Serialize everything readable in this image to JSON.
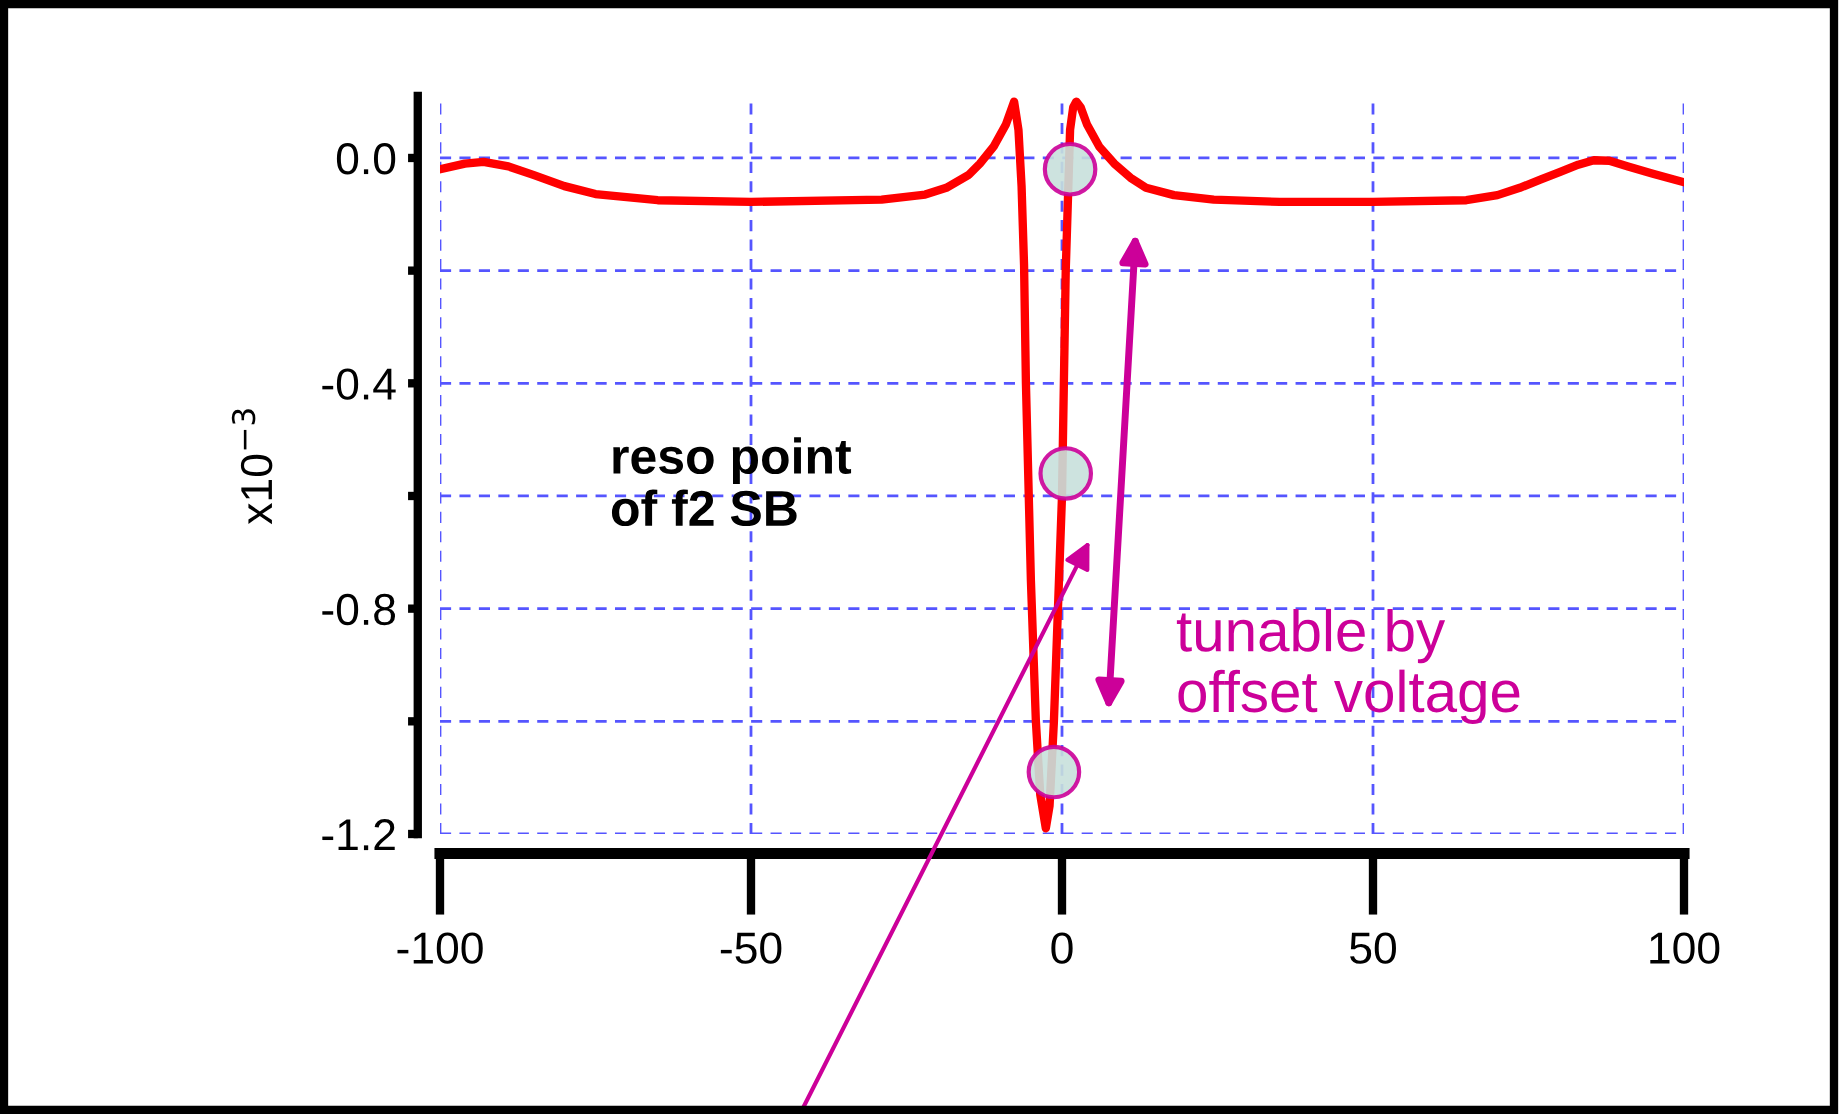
{
  "chart_data": {
    "type": "line",
    "ylabel": "x10$^{−3}$",
    "xlim": [
      -100,
      100
    ],
    "xticks": [
      -100,
      -50,
      0,
      50,
      100
    ],
    "ylim": [
      -1.2,
      0.11
    ],
    "yticks": [
      {
        "value": 0,
        "label": "0.0"
      },
      {
        "value": -0.2,
        "label": null
      },
      -0.4,
      {
        "value": -0.6,
        "label": null
      },
      -0.8,
      {
        "value": -1.0,
        "label": null
      },
      -1.2
    ],
    "grid": true,
    "legend": false,
    "marker": "none",
    "line_style": "solid",
    "series": [
      {
        "color": "#ff0000",
        "x": [
          -100,
          -96,
          -93,
          -89,
          -85,
          -80,
          -75,
          -65,
          -50,
          -29,
          -22,
          -18.6,
          -15,
          -13.2,
          -11,
          -9,
          -7.7,
          -7,
          -6.5,
          -6.1,
          -5.8,
          -5,
          -4.2,
          -3.5,
          -2.6,
          -2,
          -1.3,
          0,
          0.6,
          1.3,
          1.8,
          2.3,
          3,
          4,
          6,
          8.4,
          11,
          13.5,
          18,
          24.4,
          35,
          50,
          65,
          70,
          73.6,
          77,
          80,
          83,
          85.5,
          88,
          91,
          95,
          100
        ],
        "values": [
          -0.02,
          -0.01,
          -0.007,
          -0.015,
          -0.03,
          -0.05,
          -0.064,
          -0.075,
          -0.078,
          -0.074,
          -0.065,
          -0.053,
          -0.03,
          -0.01,
          0.02,
          0.06,
          0.1,
          0.05,
          -0.05,
          -0.19,
          -0.4,
          -0.75,
          -1.0,
          -1.13,
          -1.19,
          -1.15,
          -1.0,
          -0.6,
          -0.2,
          0.05,
          0.09,
          0.1,
          0.09,
          0.06,
          0.02,
          -0.01,
          -0.035,
          -0.053,
          -0.066,
          -0.074,
          -0.078,
          -0.078,
          -0.075,
          -0.066,
          -0.053,
          -0.038,
          -0.025,
          -0.012,
          -0.004,
          -0.005,
          -0.015,
          -0.028,
          -0.043
        ]
      },
      {
        "type": "scatter",
        "marker": "circle",
        "color": "#c8e0dc",
        "x": [
          1.3,
          0.6,
          -1.3
        ],
        "values": [
          -0.02,
          -0.56,
          -1.09
        ]
      }
    ],
    "annotations": [
      "reso point\nof f2 SB",
      "tunable by\noffset voltage"
    ]
  }
}
